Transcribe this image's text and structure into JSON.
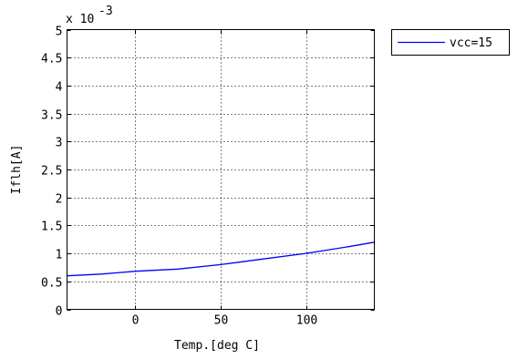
{
  "chart_data": {
    "type": "line",
    "xlabel": "Temp.[deg C]",
    "ylabel": "Iflh[A]",
    "xlim": [
      -40,
      140
    ],
    "ylim": [
      0,
      5
    ],
    "y_scale_exponent": "x 10",
    "y_scale_power": "-3",
    "x_ticks": [
      "0",
      "50",
      "100"
    ],
    "y_ticks": [
      "0",
      "0.5",
      "1",
      "1.5",
      "2",
      "2.5",
      "3",
      "3.5",
      "4",
      "4.5",
      "5"
    ],
    "grid": true,
    "legend_position": "outside-top-right",
    "series": [
      {
        "name": "vcc=15",
        "color": "#0000ff",
        "x": [
          -40,
          -20,
          0,
          25,
          50,
          75,
          100,
          125,
          140
        ],
        "y": [
          0.6,
          0.63,
          0.68,
          0.72,
          0.8,
          0.9,
          1.0,
          1.12,
          1.2
        ]
      }
    ]
  }
}
